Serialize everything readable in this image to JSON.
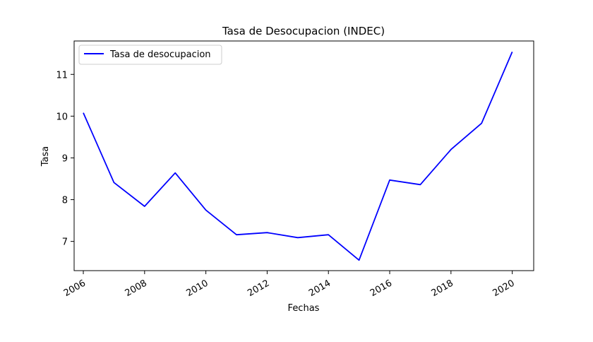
{
  "chart_data": {
    "type": "line",
    "title": "Tasa de Desocupacion (INDEC)",
    "xlabel": "Fechas",
    "ylabel": "Tasa",
    "x": [
      2006,
      2007,
      2008,
      2009,
      2010,
      2011,
      2012,
      2013,
      2014,
      2015,
      2016,
      2017,
      2018,
      2019,
      2020
    ],
    "series": [
      {
        "name": "Tasa de desocupacion",
        "color": "#0000ff",
        "values": [
          10.08,
          8.41,
          7.84,
          8.64,
          7.75,
          7.16,
          7.21,
          7.09,
          7.16,
          6.55,
          8.47,
          8.36,
          9.2,
          9.83,
          11.54
        ]
      }
    ],
    "xticks": [
      "2006",
      "2008",
      "2010",
      "2012",
      "2014",
      "2016",
      "2018",
      "2020"
    ],
    "yticks": [
      "7",
      "8",
      "9",
      "10",
      "11"
    ],
    "xlim": [
      2005.7,
      2020.7
    ],
    "ylim": [
      6.3,
      11.8
    ],
    "grid": false,
    "legend_position": "top-left"
  }
}
